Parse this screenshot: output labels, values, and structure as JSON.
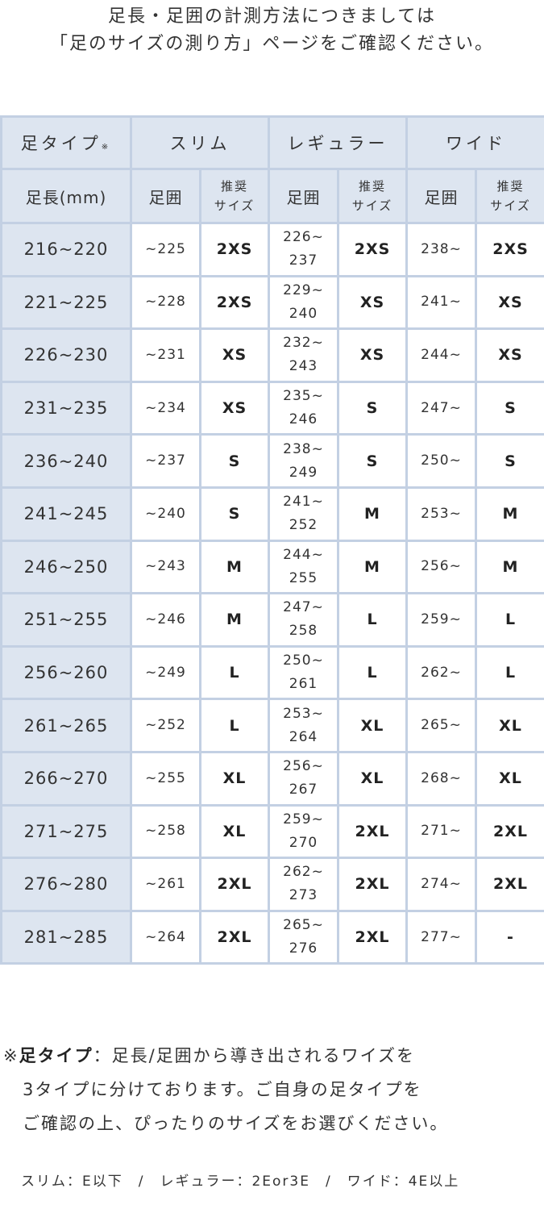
{
  "intro": [
    "足長・足囲の計測方法につきましては",
    "「足のサイズの測り方」ページをご確認ください。"
  ],
  "header": {
    "type_label": "足タイプ",
    "type_mark": "※",
    "types": [
      "スリム",
      "レギュラー",
      "ワイド"
    ],
    "length_label": "足長(mm)",
    "girth_label": "足囲",
    "size_label_1": "推奨",
    "size_label_2": "サイズ"
  },
  "rows": [
    {
      "len": "216~220",
      "slim_g": "~225",
      "slim_s": "2XS",
      "reg_g1": "226~",
      "reg_g2": "237",
      "reg_s": "2XS",
      "wide_g": "238~",
      "wide_s": "2XS"
    },
    {
      "len": "221~225",
      "slim_g": "~228",
      "slim_s": "2XS",
      "reg_g1": "229~",
      "reg_g2": "240",
      "reg_s": "XS",
      "wide_g": "241~",
      "wide_s": "XS"
    },
    {
      "len": "226~230",
      "slim_g": "~231",
      "slim_s": "XS",
      "reg_g1": "232~",
      "reg_g2": "243",
      "reg_s": "XS",
      "wide_g": "244~",
      "wide_s": "XS"
    },
    {
      "len": "231~235",
      "slim_g": "~234",
      "slim_s": "XS",
      "reg_g1": "235~",
      "reg_g2": "246",
      "reg_s": "S",
      "wide_g": "247~",
      "wide_s": "S"
    },
    {
      "len": "236~240",
      "slim_g": "~237",
      "slim_s": "S",
      "reg_g1": "238~",
      "reg_g2": "249",
      "reg_s": "S",
      "wide_g": "250~",
      "wide_s": "S"
    },
    {
      "len": "241~245",
      "slim_g": "~240",
      "slim_s": "S",
      "reg_g1": "241~",
      "reg_g2": "252",
      "reg_s": "M",
      "wide_g": "253~",
      "wide_s": "M"
    },
    {
      "len": "246~250",
      "slim_g": "~243",
      "slim_s": "M",
      "reg_g1": "244~",
      "reg_g2": "255",
      "reg_s": "M",
      "wide_g": "256~",
      "wide_s": "M"
    },
    {
      "len": "251~255",
      "slim_g": "~246",
      "slim_s": "M",
      "reg_g1": "247~",
      "reg_g2": "258",
      "reg_s": "L",
      "wide_g": "259~",
      "wide_s": "L"
    },
    {
      "len": "256~260",
      "slim_g": "~249",
      "slim_s": "L",
      "reg_g1": "250~",
      "reg_g2": "261",
      "reg_s": "L",
      "wide_g": "262~",
      "wide_s": "L"
    },
    {
      "len": "261~265",
      "slim_g": "~252",
      "slim_s": "L",
      "reg_g1": "253~",
      "reg_g2": "264",
      "reg_s": "XL",
      "wide_g": "265~",
      "wide_s": "XL"
    },
    {
      "len": "266~270",
      "slim_g": "~255",
      "slim_s": "XL",
      "reg_g1": "256~",
      "reg_g2": "267",
      "reg_s": "XL",
      "wide_g": "268~",
      "wide_s": "XL"
    },
    {
      "len": "271~275",
      "slim_g": "~258",
      "slim_s": "XL",
      "reg_g1": "259~",
      "reg_g2": "270",
      "reg_s": "2XL",
      "wide_g": "271~",
      "wide_s": "2XL"
    },
    {
      "len": "276~280",
      "slim_g": "~261",
      "slim_s": "2XL",
      "reg_g1": "262~",
      "reg_g2": "273",
      "reg_s": "2XL",
      "wide_g": "274~",
      "wide_s": "2XL"
    },
    {
      "len": "281~285",
      "slim_g": "~264",
      "slim_s": "2XL",
      "reg_g1": "265~",
      "reg_g2": "276",
      "reg_s": "2XL",
      "wide_g": "277~",
      "wide_s": "-"
    }
  ],
  "note": {
    "mark": "※",
    "term": "足タイプ",
    "line1": "：足長/足囲から導き出されるワイズを",
    "line2": "3タイプに分けております。ご自身の足タイプを",
    "line3": "ご確認の上、ぴったりのサイズをお選びください。"
  },
  "legend": "スリム：E以下　/　レギュラー：2Eor3E　/　ワイド：4E以上",
  "colors": {
    "border": "#c3d0e3",
    "header_bg": "#dde5f0"
  }
}
